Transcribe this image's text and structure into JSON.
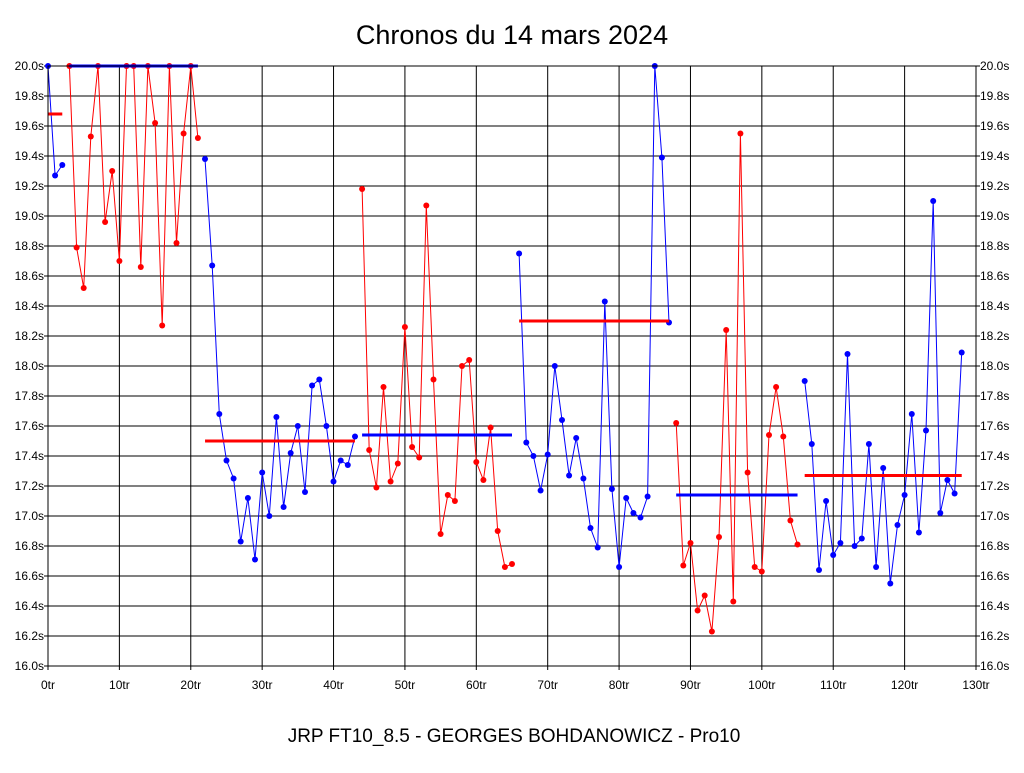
{
  "chart_data": {
    "type": "line",
    "title": "Chronos du 14 mars 2024",
    "footer": "JRP FT10_8.5 - GEORGES BOHDANOWICZ - Pro10",
    "xlim": [
      0,
      130
    ],
    "ylim": [
      16.0,
      20.0
    ],
    "grid": true,
    "x_ticks": [
      0,
      10,
      20,
      30,
      40,
      50,
      60,
      70,
      80,
      90,
      100,
      110,
      120,
      130
    ],
    "x_tick_labels": [
      "0tr",
      "10tr",
      "20tr",
      "30tr",
      "40tr",
      "50tr",
      "60tr",
      "70tr",
      "80tr",
      "90tr",
      "100tr",
      "110tr",
      "120tr",
      "130tr"
    ],
    "y_ticks": [
      16.0,
      16.2,
      16.4,
      16.6,
      16.8,
      17.0,
      17.2,
      17.4,
      17.6,
      17.8,
      18.0,
      18.2,
      18.4,
      18.6,
      18.8,
      19.0,
      19.2,
      19.4,
      19.6,
      19.8,
      20.0
    ],
    "y_tick_labels": [
      "16.0s",
      "16.2s",
      "16.4s",
      "16.6s",
      "16.8s",
      "17.0s",
      "17.2s",
      "17.4s",
      "17.6s",
      "17.8s",
      "18.0s",
      "18.2s",
      "18.4s",
      "18.6s",
      "18.8s",
      "19.0s",
      "19.2s",
      "19.4s",
      "19.6s",
      "19.8s",
      "20.0s"
    ],
    "series": [
      {
        "color": "#0000ff",
        "x": [
          0,
          1,
          2
        ],
        "y": [
          20.0,
          19.27,
          19.34
        ]
      },
      {
        "color": "#ff0000",
        "x": [
          3,
          4,
          5,
          6,
          7,
          8,
          9,
          10,
          11,
          12,
          13,
          14,
          15,
          16,
          17,
          18,
          19,
          20,
          21
        ],
        "y": [
          20.0,
          18.79,
          18.52,
          19.53,
          20.0,
          18.96,
          19.3,
          18.7,
          20.0,
          20.0,
          18.66,
          20.0,
          19.62,
          18.27,
          20.0,
          18.82,
          19.55,
          20.0,
          19.52
        ]
      },
      {
        "color": "#0000ff",
        "x": [
          22,
          23,
          24,
          25,
          26,
          27,
          28,
          29,
          30,
          31,
          32,
          33,
          34,
          35,
          36,
          37,
          38,
          39,
          40,
          41,
          42,
          43
        ],
        "y": [
          19.38,
          18.67,
          17.68,
          17.37,
          17.25,
          16.83,
          17.12,
          16.71,
          17.29,
          17.0,
          17.66,
          17.06,
          17.42,
          17.6,
          17.16,
          17.87,
          17.91,
          17.6,
          17.23,
          17.37,
          17.34,
          17.53
        ]
      },
      {
        "color": "#ff0000",
        "x": [
          44,
          45,
          46,
          47,
          48,
          49,
          50,
          51,
          52,
          53,
          54,
          55,
          56,
          57,
          58,
          59,
          60,
          61,
          62,
          63,
          64,
          65
        ],
        "y": [
          19.18,
          17.44,
          17.19,
          17.86,
          17.23,
          17.35,
          18.26,
          17.46,
          17.39,
          19.07,
          17.91,
          16.88,
          17.14,
          17.1,
          18.0,
          18.04,
          17.36,
          17.24,
          17.59,
          16.9,
          16.66,
          16.68
        ]
      },
      {
        "color": "#0000ff",
        "x": [
          66,
          67,
          68,
          69,
          70,
          71,
          72,
          73,
          74,
          75,
          76,
          77,
          78,
          79,
          80,
          81,
          82,
          83,
          84,
          85,
          86,
          87
        ],
        "y": [
          18.75,
          17.49,
          17.4,
          17.17,
          17.41,
          18.0,
          17.64,
          17.27,
          17.52,
          17.25,
          16.92,
          16.79,
          18.43,
          17.18,
          16.66,
          17.12,
          17.02,
          16.99,
          17.13,
          20.0,
          19.39,
          18.29
        ]
      },
      {
        "color": "#ff0000",
        "x": [
          88,
          89,
          90,
          91,
          92,
          93,
          94,
          95,
          96,
          97,
          98,
          99,
          100,
          101,
          102,
          103,
          104,
          105
        ],
        "y": [
          17.62,
          16.67,
          16.82,
          16.37,
          16.47,
          16.23,
          16.86,
          18.24,
          16.43,
          19.55,
          17.29,
          16.66,
          16.63,
          17.54,
          17.86,
          17.53,
          16.97,
          16.81
        ]
      },
      {
        "color": "#0000ff",
        "x": [
          106,
          107,
          108,
          109,
          110,
          111,
          112,
          113,
          114,
          115,
          116,
          117,
          118,
          119,
          120,
          121,
          122,
          123,
          124,
          125,
          126,
          127,
          128
        ],
        "y": [
          17.9,
          17.48,
          16.64,
          17.1,
          16.74,
          16.82,
          18.08,
          16.8,
          16.85,
          17.48,
          16.66,
          17.32,
          16.55,
          16.94,
          17.14,
          17.68,
          16.89,
          17.57,
          19.1,
          17.02,
          17.24,
          17.15,
          18.09
        ]
      }
    ],
    "averages": [
      {
        "color": "#ff0000",
        "x0": 0,
        "x1": 2,
        "y": 19.68
      },
      {
        "color": "#0000ff",
        "x0": 3,
        "x1": 21,
        "y": 20.0
      },
      {
        "color": "#ff0000",
        "x0": 22,
        "x1": 43,
        "y": 17.5
      },
      {
        "color": "#0000ff",
        "x0": 44,
        "x1": 65,
        "y": 17.54
      },
      {
        "color": "#ff0000",
        "x0": 66,
        "x1": 87,
        "y": 18.3
      },
      {
        "color": "#0000ff",
        "x0": 88,
        "x1": 105,
        "y": 17.14
      },
      {
        "color": "#ff0000",
        "x0": 106,
        "x1": 128,
        "y": 17.27
      }
    ]
  }
}
